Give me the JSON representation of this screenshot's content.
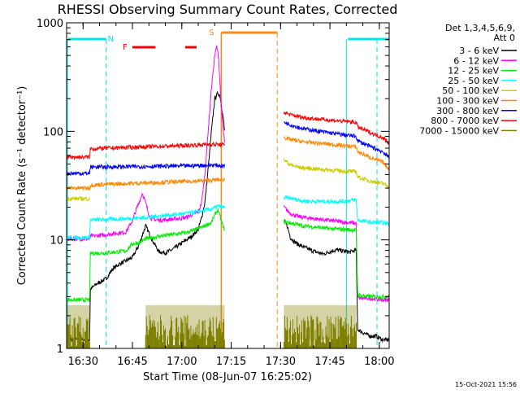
{
  "chart_data": {
    "type": "line",
    "title": "RHESSI Observing Summary Count Rates, Corrected",
    "xlabel": "Start Time (08-Jun-07 16:25:02)",
    "ylabel": "Corrected Count Rate (s⁻¹ detector⁻¹)",
    "y_scale": "log",
    "ylim": [
      1,
      1000
    ],
    "xlim_minutes_after_1625": [
      0,
      98
    ],
    "x_ticks": [
      "16:30",
      "16:45",
      "17:00",
      "17:15",
      "17:30",
      "17:45",
      "18:00"
    ],
    "y_ticks": [
      "1",
      "10",
      "100",
      "1000"
    ],
    "legend_header": [
      "Det 1,3,4,5,6,9,",
      "Att 0"
    ],
    "footer_timestamp": "15-Oct-2021 15:56",
    "colors": {
      "background": "#ffffff",
      "axes": "#000000",
      "night": "#00e5e5",
      "saa": "#ff8c1a",
      "flare": "#ff0000"
    },
    "series": [
      {
        "name": "3 - 6 keV",
        "color": "#000000",
        "segments": [
          {
            "t": [
              0,
              7,
              7.2,
              9,
              12,
              14,
              16,
              18,
              20,
              22,
              24,
              26,
              28,
              30,
              32,
              34,
              36,
              38,
              40,
              41,
              42,
              43,
              44,
              45,
              46,
              46.6,
              47,
              47.6,
              48
            ],
            "v": [
              1.2,
              1.2,
              3.5,
              3.9,
              4.4,
              5.4,
              6.0,
              6.4,
              6.9,
              9.0,
              13.5,
              10.0,
              7.8,
              7.6,
              8.1,
              8.9,
              9.8,
              10.8,
              12.5,
              16,
              22,
              45,
              100,
              200,
              225,
              214,
              175,
              130,
              100
            ]
          },
          {
            "t": [
              66,
              67,
              68,
              69,
              70,
              72,
              74,
              76,
              78,
              80,
              82,
              84,
              86,
              88,
              88.4,
              90,
              92,
              94,
              96,
              98
            ],
            "v": [
              15,
              13.5,
              10.5,
              9.8,
              9.2,
              8.6,
              8.1,
              7.7,
              7.4,
              7.8,
              8.1,
              7.9,
              7.7,
              8.1,
              1.5,
              1.4,
              1.3,
              1.3,
              1.2,
              1.2
            ]
          }
        ]
      },
      {
        "name": "6 - 12 keV",
        "color": "#ff00ff",
        "segments": [
          {
            "t": [
              0,
              7,
              7.2,
              10,
              14,
              18,
              20,
              21,
              22,
              23,
              24,
              25,
              26,
              28,
              32,
              36,
              38,
              40,
              41,
              42,
              43,
              44,
              45,
              45.6,
              46.2,
              47,
              47.6,
              48
            ],
            "v": [
              10.2,
              10.2,
              10.8,
              11.0,
              11.4,
              11.8,
              15,
              18.5,
              22,
              27,
              22,
              17,
              15.5,
              15.2,
              15.5,
              16,
              17,
              18,
              22,
              40,
              100,
              250,
              500,
              610,
              470,
              160,
              100,
              80
            ]
          },
          {
            "t": [
              66,
              68,
              70,
              72,
              76,
              80,
              84,
              88,
              88.4,
              92,
              96,
              98
            ],
            "v": [
              20,
              17.5,
              16.5,
              16.1,
              15.6,
              15.1,
              14.6,
              14.2,
              2.9,
              2.9,
              2.8,
              2.8
            ]
          }
        ]
      },
      {
        "name": "12 - 25 keV",
        "color": "#00ee00",
        "segments": [
          {
            "t": [
              0,
              7,
              7.2,
              12,
              18,
              20,
              22,
              24,
              28,
              32,
              36,
              38,
              40,
              42,
              44,
              45,
              46,
              47,
              48
            ],
            "v": [
              2.8,
              2.8,
              7.5,
              7.6,
              7.9,
              9.2,
              9.4,
              10.2,
              10.8,
              11.2,
              11.6,
              12.1,
              12.7,
              13.5,
              14.5,
              17,
              19,
              15,
              12
            ]
          },
          {
            "t": [
              66,
              68,
              70,
              72,
              76,
              80,
              84,
              88,
              88.4,
              92,
              96,
              98
            ],
            "v": [
              14.8,
              14.3,
              13.9,
              13.4,
              13.1,
              12.7,
              12.5,
              12.3,
              3.1,
              3.0,
              3.0,
              3.0
            ]
          }
        ]
      },
      {
        "name": "25 - 50 keV",
        "color": "#00ffff",
        "segments": [
          {
            "t": [
              0,
              7,
              7.2,
              12,
              18,
              24,
              30,
              36,
              40,
              44,
              46,
              48
            ],
            "v": [
              10.5,
              10.5,
              15.2,
              15.4,
              15.7,
              16.1,
              16.8,
              17.5,
              18.2,
              19.2,
              20.5,
              19.8
            ]
          },
          {
            "t": [
              66,
              68,
              70,
              72,
              76,
              80,
              84,
              88,
              88.4,
              92,
              96,
              98
            ],
            "v": [
              24.5,
              24.2,
              23.5,
              22.8,
              22.6,
              22.6,
              22.6,
              23.5,
              15.2,
              14.6,
              14.4,
              14.1
            ]
          }
        ]
      },
      {
        "name": "50 - 100 keV",
        "color": "#cccc00",
        "segments": [
          {
            "t": [
              0,
              7
            ],
            "v": [
              24,
              24
            ]
          },
          {
            "t": [
              66,
              68,
              70,
              72,
              76,
              80,
              84,
              88,
              88.4,
              92,
              96,
              98
            ],
            "v": [
              55,
              49,
              47,
              46,
              45,
              44,
              43,
              42.5,
              38,
              35,
              33,
              31
            ]
          }
        ]
      },
      {
        "name": "100 - 300 keV",
        "color": "#ff8800",
        "segments": [
          {
            "t": [
              0,
              7,
              7.2,
              12,
              18,
              24,
              30,
              36,
              40,
              44,
              48
            ],
            "v": [
              30,
              30,
              32,
              32.5,
              33,
              33.5,
              34,
              34.5,
              35,
              35.5,
              36
            ]
          },
          {
            "t": [
              66,
              68,
              70,
              72,
              76,
              80,
              84,
              88,
              88.4,
              92,
              96,
              98
            ],
            "v": [
              88,
              84,
              82,
              80,
              78,
              76,
              74,
              72,
              65,
              58,
              52,
              45
            ]
          }
        ]
      },
      {
        "name": "300 - 800 keV",
        "color": "#0000ff",
        "segments": [
          {
            "t": [
              0,
              7,
              7.2,
              12,
              18,
              24,
              30,
              36,
              40,
              44,
              48
            ],
            "v": [
              41,
              41,
              47,
              47,
              47.3,
              47.5,
              47.8,
              48,
              48.5,
              49,
              48
            ]
          },
          {
            "t": [
              66,
              68,
              70,
              72,
              76,
              80,
              84,
              88,
              88.4,
              92,
              96,
              98
            ],
            "v": [
              122,
              115,
              110,
              106,
              101,
              97,
              93,
              90,
              82,
              73,
              65,
              57
            ]
          }
        ]
      },
      {
        "name": "800 - 7000 keV",
        "color": "#ff0000",
        "segments": [
          {
            "t": [
              0,
              7,
              7.2,
              12,
              18,
              24,
              30,
              36,
              40,
              44,
              48
            ],
            "v": [
              58,
              58,
              69,
              70,
              71,
              72,
              73,
              74,
              75,
              76,
              75
            ]
          },
          {
            "t": [
              66,
              68,
              70,
              72,
              76,
              80,
              84,
              88,
              88.4,
              92,
              96,
              98
            ],
            "v": [
              150,
              142,
              138,
              134,
              130,
              127,
              124,
              121,
              110,
              98,
              88,
              78
            ]
          }
        ]
      },
      {
        "name": "7000 - 15000 keV",
        "color": "#808000",
        "segments": [
          {
            "t": [
              0,
              7
            ],
            "v": [
              1.7,
              1.7
            ]
          },
          {
            "t": [
              24,
              48
            ],
            "v": [
              1.7,
              1.7
            ]
          },
          {
            "t": [
              66,
              88
            ],
            "v": [
              1.7,
              1.7
            ]
          }
        ]
      }
    ],
    "night_intervals": [
      {
        "start": 0,
        "end": 12
      },
      {
        "start": 85,
        "end": 98
      }
    ],
    "saa_intervals": [
      {
        "start": 45,
        "end": 64
      }
    ],
    "flare_intervals": [
      {
        "start": 20,
        "end": 27
      },
      {
        "start": 36,
        "end": 39.5
      }
    ],
    "band_labels": {
      "night": "N",
      "flare": "F",
      "saa": "S"
    }
  }
}
